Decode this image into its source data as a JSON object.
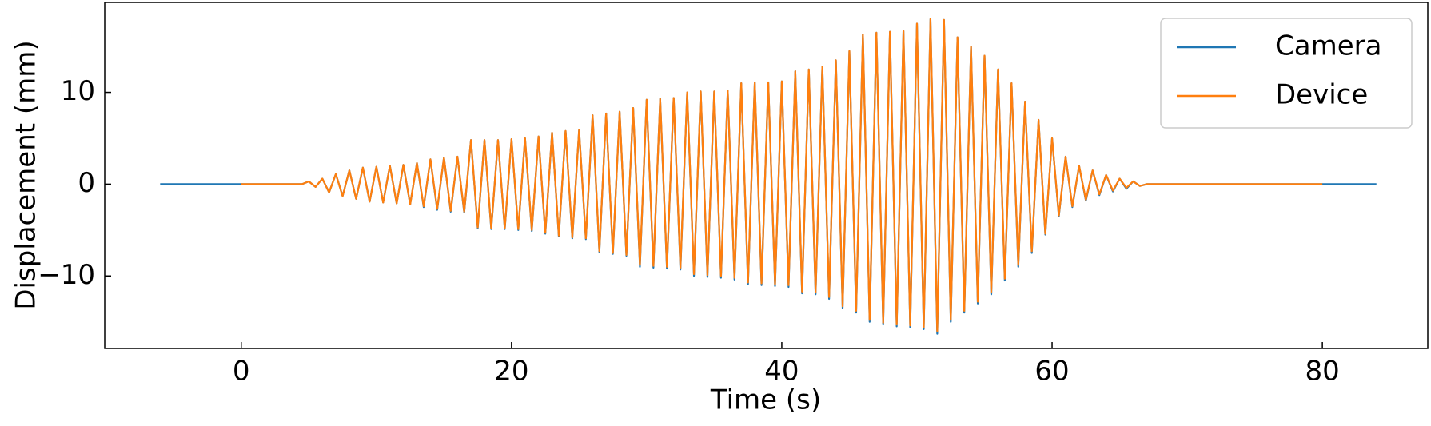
{
  "chart_data": {
    "type": "line",
    "xlabel": "Time (s)",
    "ylabel": "Displacement (mm)",
    "xlim": [
      -10.1,
      87.8
    ],
    "xticks": [
      0,
      20,
      40,
      60,
      80
    ],
    "ylim": [
      -17.9,
      19.8
    ],
    "yticks": [
      {
        "value": -10,
        "label": "−10"
      },
      0,
      10
    ],
    "legend": "upper right",
    "x": [
      -6,
      0,
      4.5,
      5,
      5.5,
      6,
      6.5,
      7,
      7.5,
      8,
      8.5,
      9,
      9.5,
      10,
      10.5,
      11,
      11.5,
      12,
      12.5,
      13,
      13.5,
      14,
      14.5,
      15,
      15.5,
      16,
      16.5,
      17,
      17.5,
      18,
      18.5,
      19,
      19.5,
      20,
      20.5,
      21,
      21.5,
      22,
      22.5,
      23,
      23.5,
      24,
      24.5,
      25,
      25.5,
      26,
      26.5,
      27,
      27.5,
      28,
      28.5,
      29,
      29.5,
      30,
      30.5,
      31,
      31.5,
      32,
      32.5,
      33,
      33.5,
      34,
      34.5,
      35,
      35.5,
      36,
      36.5,
      37,
      37.5,
      38,
      38.5,
      39,
      39.5,
      40,
      40.5,
      41,
      41.5,
      42,
      42.5,
      43,
      43.5,
      44,
      44.5,
      45,
      45.5,
      46,
      46.5,
      47,
      47.5,
      48,
      48.5,
      49,
      49.5,
      50,
      50.5,
      51,
      51.5,
      52,
      52.5,
      53,
      53.5,
      54,
      54.5,
      55,
      55.5,
      56,
      56.5,
      57,
      57.5,
      58,
      58.5,
      59,
      59.5,
      60,
      60.5,
      61,
      61.5,
      62,
      62.5,
      63,
      63.5,
      64,
      64.5,
      65,
      65.5,
      66,
      66.5,
      67,
      80,
      84
    ],
    "series": [
      {
        "name": "Camera",
        "color": "#1f77b4",
        "values": [
          0,
          0,
          0,
          0.3,
          -0.3,
          0.6,
          -0.9,
          1.1,
          -1.3,
          1.5,
          -1.6,
          1.8,
          -1.9,
          1.9,
          -2.0,
          2.0,
          -2.1,
          2.1,
          -2.2,
          2.3,
          -2.5,
          2.7,
          -2.8,
          2.9,
          -3.0,
          3.0,
          -3.1,
          4.8,
          -4.8,
          4.8,
          -4.9,
          4.8,
          -4.9,
          4.9,
          -5.0,
          5.0,
          -5.1,
          5.2,
          -5.4,
          5.6,
          -5.7,
          5.8,
          -5.9,
          5.9,
          -6.0,
          7.5,
          -7.4,
          7.7,
          -7.6,
          7.9,
          -7.8,
          8.3,
          -9.0,
          9.2,
          -9.1,
          9.3,
          -9.2,
          9.4,
          -9.3,
          10.0,
          -10.0,
          10.1,
          -10.1,
          10.1,
          -10.2,
          10.2,
          -10.4,
          11.0,
          -10.9,
          11.1,
          -11.0,
          11.1,
          -11.1,
          11.2,
          -11.2,
          12.3,
          -11.9,
          12.5,
          -12.0,
          12.8,
          -12.5,
          13.5,
          -13.5,
          14.5,
          -14.0,
          16.3,
          -15.0,
          16.5,
          -15.3,
          16.6,
          -15.5,
          16.7,
          -15.6,
          17.5,
          -15.8,
          18.0,
          -16.3,
          17.9,
          -15.0,
          16.0,
          -14.0,
          15.0,
          -13.0,
          14.0,
          -12.0,
          12.5,
          -10.5,
          11.0,
          -9.0,
          9.0,
          -7.5,
          7.0,
          -5.5,
          5.0,
          -3.5,
          3.0,
          -2.5,
          2.0,
          -1.8,
          1.5,
          -1.2,
          1.0,
          -0.8,
          0.6,
          -0.5,
          0.3,
          -0.2,
          0,
          0,
          0
        ]
      },
      {
        "name": "Device",
        "color": "#ff7f0e",
        "values": [
          null,
          0,
          0,
          0.3,
          -0.3,
          0.6,
          -0.9,
          1.1,
          -1.3,
          1.5,
          -1.6,
          1.8,
          -1.9,
          1.9,
          -2.0,
          2.0,
          -2.1,
          2.1,
          -2.2,
          2.3,
          -2.4,
          2.7,
          -2.7,
          2.9,
          -2.9,
          3.0,
          -3.0,
          4.8,
          -4.7,
          4.8,
          -4.8,
          4.8,
          -4.8,
          4.9,
          -4.9,
          5.0,
          -5.0,
          5.2,
          -5.3,
          5.6,
          -5.6,
          5.8,
          -5.8,
          5.9,
          -5.9,
          7.5,
          -7.3,
          7.7,
          -7.5,
          7.9,
          -7.7,
          8.3,
          -8.8,
          9.2,
          -8.9,
          9.3,
          -9.0,
          9.4,
          -9.1,
          10.0,
          -9.8,
          10.1,
          -9.9,
          10.1,
          -10.0,
          10.2,
          -10.2,
          11.0,
          -10.7,
          11.1,
          -10.8,
          11.1,
          -10.9,
          11.2,
          -11.0,
          12.3,
          -11.7,
          12.5,
          -11.8,
          12.8,
          -12.3,
          13.5,
          -13.3,
          14.5,
          -13.8,
          16.3,
          -14.8,
          16.5,
          -15.1,
          16.6,
          -15.3,
          16.7,
          -15.4,
          17.5,
          -15.6,
          18.0,
          -16.0,
          17.9,
          -14.8,
          16.0,
          -13.8,
          15.0,
          -12.8,
          14.0,
          -11.8,
          12.5,
          -10.3,
          11.0,
          -8.8,
          9.0,
          -7.3,
          7.0,
          -5.4,
          5.0,
          -3.4,
          3.0,
          -2.4,
          2.0,
          -1.7,
          1.5,
          -1.1,
          1.0,
          -0.7,
          0.6,
          -0.4,
          0.3,
          -0.2,
          0,
          0,
          null
        ]
      }
    ]
  }
}
